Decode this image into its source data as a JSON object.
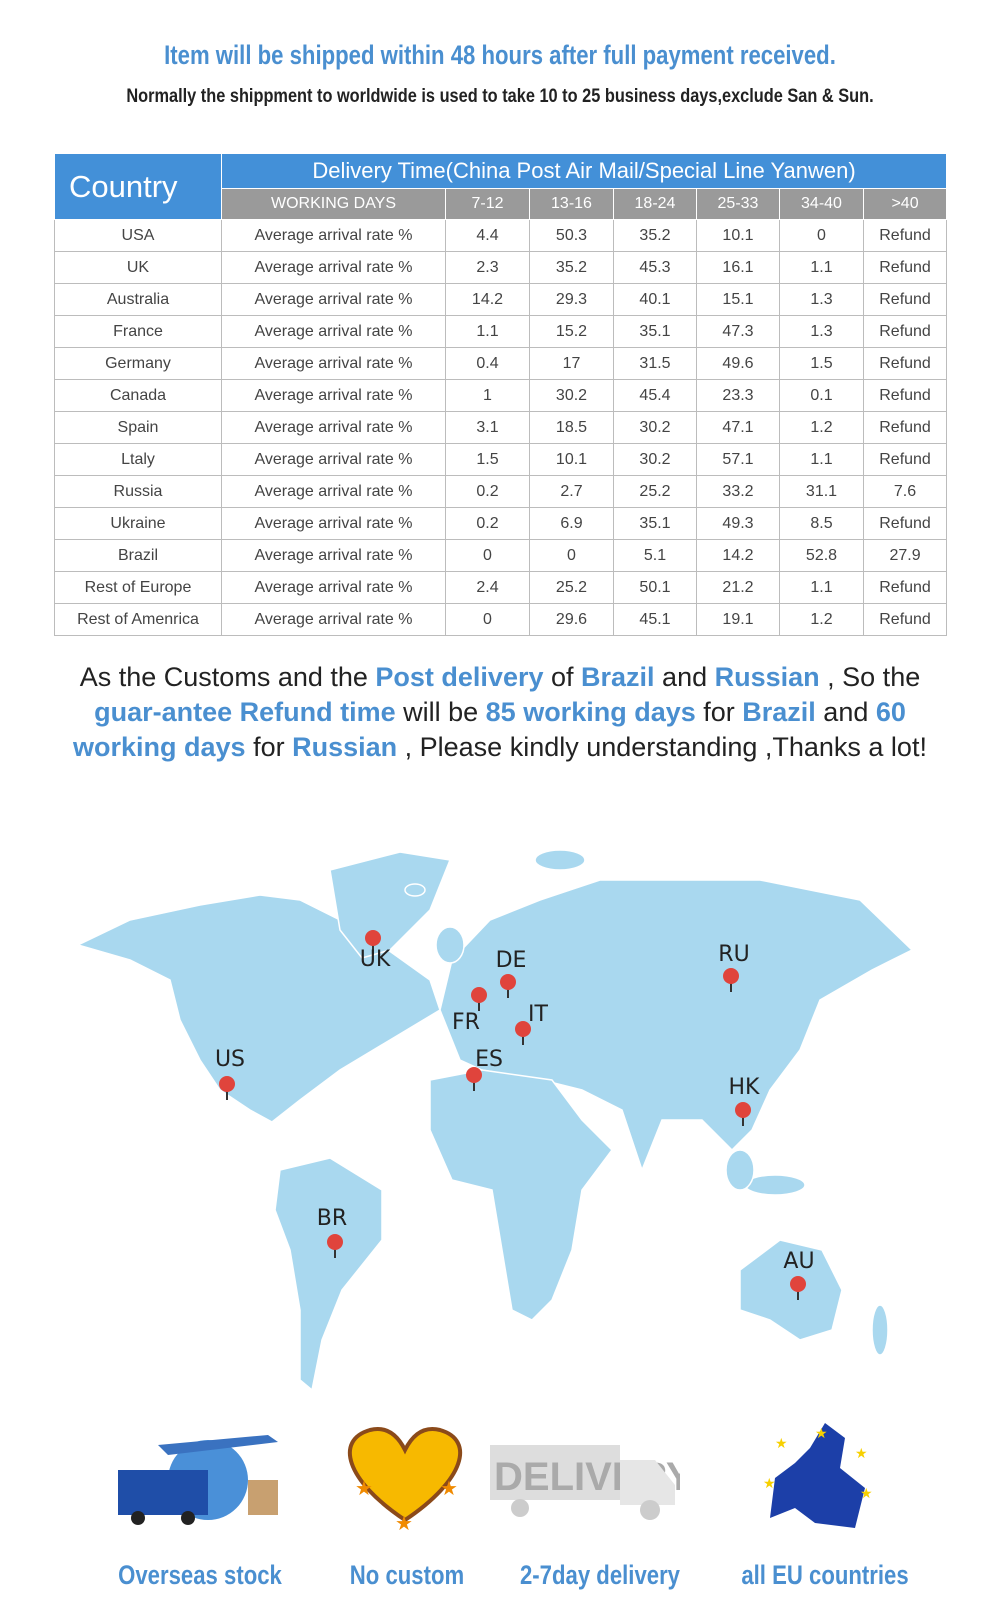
{
  "header": {
    "title": "Item will be shipped within 48 hours after full payment received.",
    "subtitle": "Normally the shippment to worldwide is used to take 10 to 25 business days,exclude San & Sun."
  },
  "table": {
    "country_header": "Country",
    "delivery_header": "Delivery Time(China Post Air Mail/Special Line Yanwen)",
    "working_days": "WORKING DAYS",
    "ranges": [
      "7-12",
      "13-16",
      "18-24",
      "25-33",
      "34-40",
      ">40"
    ],
    "rows": [
      {
        "country": "USA",
        "metric": "Average arrival rate %",
        "values": [
          "4.4",
          "50.3",
          "35.2",
          "10.1",
          "0",
          "Refund"
        ]
      },
      {
        "country": "UK",
        "metric": "Average arrival rate %",
        "values": [
          "2.3",
          "35.2",
          "45.3",
          "16.1",
          "1.1",
          "Refund"
        ]
      },
      {
        "country": "Australia",
        "metric": "Average arrival rate %",
        "values": [
          "14.2",
          "29.3",
          "40.1",
          "15.1",
          "1.3",
          "Refund"
        ]
      },
      {
        "country": "France",
        "metric": "Average arrival rate %",
        "values": [
          "1.1",
          "15.2",
          "35.1",
          "47.3",
          "1.3",
          "Refund"
        ]
      },
      {
        "country": "Germany",
        "metric": "Average arrival rate %",
        "values": [
          "0.4",
          "17",
          "31.5",
          "49.6",
          "1.5",
          "Refund"
        ]
      },
      {
        "country": "Canada",
        "metric": "Average arrival rate %",
        "values": [
          "1",
          "30.2",
          "45.4",
          "23.3",
          "0.1",
          "Refund"
        ]
      },
      {
        "country": "Spain",
        "metric": "Average arrival rate %",
        "values": [
          "3.1",
          "18.5",
          "30.2",
          "47.1",
          "1.2",
          "Refund"
        ]
      },
      {
        "country": "Ltaly",
        "metric": "Average arrival rate %",
        "values": [
          "1.5",
          "10.1",
          "30.2",
          "57.1",
          "1.1",
          "Refund"
        ]
      },
      {
        "country": "Russia",
        "metric": "Average arrival rate %",
        "values": [
          "0.2",
          "2.7",
          "25.2",
          "33.2",
          "31.1",
          "7.6"
        ]
      },
      {
        "country": "Ukraine",
        "metric": "Average arrival rate %",
        "values": [
          "0.2",
          "6.9",
          "35.1",
          "49.3",
          "8.5",
          "Refund"
        ]
      },
      {
        "country": "Brazil",
        "metric": "Average arrival rate %",
        "values": [
          "0",
          "0",
          "5.1",
          "14.2",
          "52.8",
          "27.9"
        ]
      },
      {
        "country": "Rest of Europe",
        "metric": "Average arrival rate %",
        "values": [
          "2.4",
          "25.2",
          "50.1",
          "21.2",
          "1.1",
          "Refund"
        ]
      },
      {
        "country": "Rest of Amenrica",
        "metric": "Average arrival rate %",
        "values": [
          "0",
          "29.6",
          "45.1",
          "19.1",
          "1.2",
          "Refund"
        ]
      }
    ]
  },
  "notice": [
    {
      "t": "As the Customs and the ",
      "h": false
    },
    {
      "t": "Post delivery",
      "h": true
    },
    {
      "t": " of ",
      "h": false
    },
    {
      "t": "Brazil",
      "h": true
    },
    {
      "t": " and ",
      "h": false
    },
    {
      "t": "Russian",
      "h": true
    },
    {
      "t": " , So the ",
      "h": false
    },
    {
      "t": "guar-antee Refund time",
      "h": true
    },
    {
      "t": " will be ",
      "h": false
    },
    {
      "t": "85 working days",
      "h": true
    },
    {
      "t": " for ",
      "h": false
    },
    {
      "t": "Brazil",
      "h": true
    },
    {
      "t": " and ",
      "h": false
    },
    {
      "t": "60 working days",
      "h": true
    },
    {
      "t": " for ",
      "h": false
    },
    {
      "t": "Russian",
      "h": true
    },
    {
      "t": " , Please kindly understanding ,Thanks a lot!",
      "h": false
    }
  ],
  "map": {
    "land_color": "#a9d8ef",
    "pin_color": "#e0443c",
    "pins": [
      "UK",
      "US",
      "DE",
      "FR",
      "IT",
      "ES",
      "RU",
      "HK",
      "BR",
      "AU"
    ]
  },
  "features": [
    {
      "label": "Overseas stock",
      "icon": "truck-globe-plane-icon"
    },
    {
      "label": "No custom",
      "icon": "handshake-heart-icon"
    },
    {
      "label": "2-7day delivery",
      "icon": "delivery-truck-icon"
    },
    {
      "label": "all EU countries",
      "icon": "eu-map-icon"
    }
  ],
  "colors": {
    "accent": "#4a8fd0",
    "header_blue": "#4390d8",
    "header_gray": "#9a9a9a"
  }
}
